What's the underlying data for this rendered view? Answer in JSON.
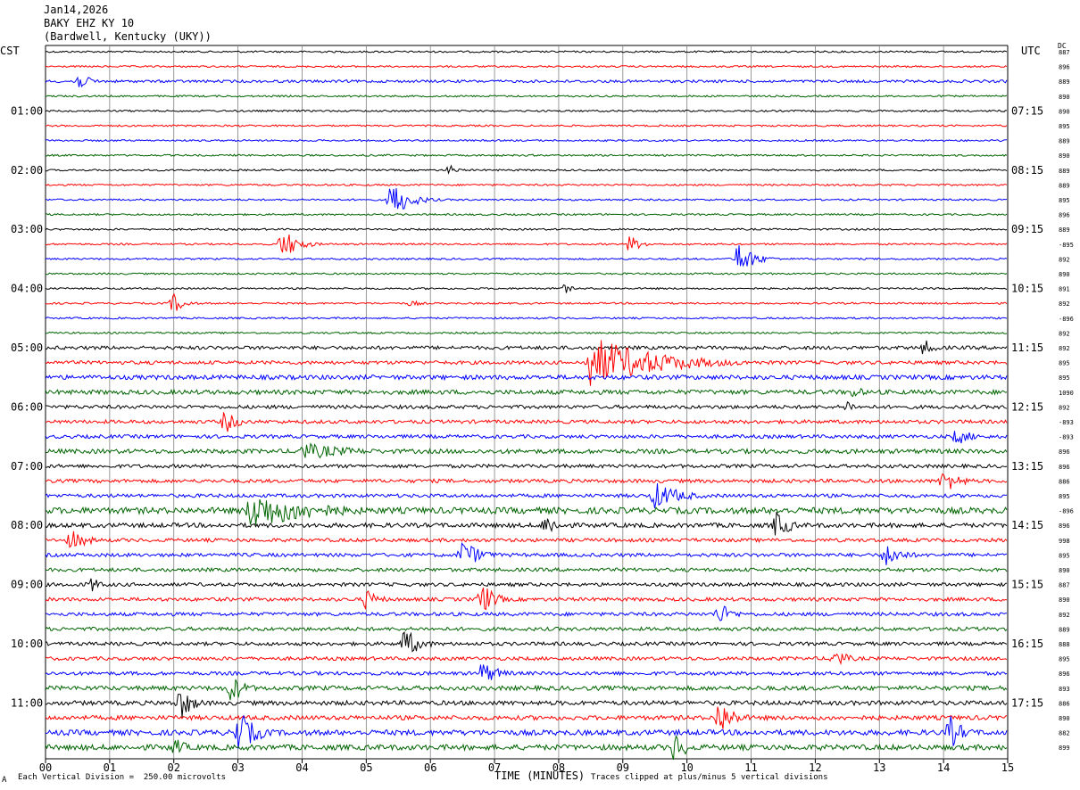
{
  "header": {
    "date": "Jan14,2026",
    "station": "BAKY EHZ KY 10",
    "location": "(Bardwell, Kentucky (UKY))"
  },
  "left_tz": "CST",
  "right_tz": "UTC",
  "dc_label": "DC",
  "footer": {
    "scale": "Each Vertical Division =  250.00 microvolts",
    "xlabel": "TIME (MINUTES)",
    "clip_note": "Traces clipped at plus/minus 5 vertical divisions",
    "corner_mark": "A"
  },
  "colors": {
    "black": "#000000",
    "red": "#ff0000",
    "blue": "#0000ff",
    "green": "#006400",
    "grid": "#808080"
  },
  "chart_data": {
    "type": "line",
    "title": "BAKY EHZ KY 10",
    "xlabel": "TIME (MINUTES)",
    "xlim": [
      0,
      15
    ],
    "x_ticks": [
      "00",
      "01",
      "02",
      "03",
      "04",
      "05",
      "06",
      "07",
      "08",
      "09",
      "10",
      "11",
      "12",
      "13",
      "14",
      "15"
    ],
    "trace_colors": [
      "black",
      "red",
      "blue",
      "green"
    ],
    "row_count": 48,
    "left_hour_labels": [
      {
        "row": 4,
        "label": "01:00"
      },
      {
        "row": 8,
        "label": "02:00"
      },
      {
        "row": 12,
        "label": "03:00"
      },
      {
        "row": 16,
        "label": "04:00"
      },
      {
        "row": 20,
        "label": "05:00"
      },
      {
        "row": 24,
        "label": "06:00"
      },
      {
        "row": 28,
        "label": "07:00"
      },
      {
        "row": 32,
        "label": "08:00"
      },
      {
        "row": 36,
        "label": "09:00"
      },
      {
        "row": 40,
        "label": "10:00"
      },
      {
        "row": 44,
        "label": "11:00"
      }
    ],
    "right_hour_labels": [
      {
        "row": 4,
        "label": "07:15"
      },
      {
        "row": 8,
        "label": "08:15"
      },
      {
        "row": 12,
        "label": "09:15"
      },
      {
        "row": 16,
        "label": "10:15"
      },
      {
        "row": 20,
        "label": "11:15"
      },
      {
        "row": 24,
        "label": "12:15"
      },
      {
        "row": 28,
        "label": "13:15"
      },
      {
        "row": 32,
        "label": "14:15"
      },
      {
        "row": 36,
        "label": "15:15"
      },
      {
        "row": 40,
        "label": "16:15"
      },
      {
        "row": 44,
        "label": "17:15"
      }
    ],
    "dc_values": [
      "887",
      "896",
      "889",
      "890",
      "890",
      "895",
      "889",
      "890",
      "889",
      "889",
      "895",
      "896",
      "889",
      "-895",
      "892",
      "890",
      "891",
      "892",
      "-896",
      "892",
      "892",
      "895",
      "895",
      "1090",
      "892",
      "-893",
      "-893",
      "896",
      "896",
      "886",
      "895",
      "-896",
      "896",
      "998",
      "895",
      "890",
      "887",
      "890",
      "892",
      "889",
      "888",
      "895",
      "896",
      "893",
      "886",
      "890",
      "882",
      "899"
    ],
    "noise_levels": [
      1,
      1,
      1.5,
      1,
      1,
      1,
      1,
      1,
      1,
      1,
      1,
      1,
      1,
      1,
      1,
      1,
      1,
      1,
      1,
      1,
      2,
      2,
      2.5,
      2.5,
      2,
      2,
      2,
      2.5,
      2,
      2,
      2,
      3.5,
      2.5,
      2,
      2,
      2,
      2,
      2,
      2,
      2,
      2,
      2,
      2,
      2.5,
      2.5,
      2.5,
      3,
      3
    ],
    "events": [
      {
        "row": 2,
        "minute": 0.5,
        "amplitude": 10,
        "duration_min": 0.6
      },
      {
        "row": 8,
        "minute": 6.3,
        "amplitude": 6,
        "duration_min": 0.4
      },
      {
        "row": 10,
        "minute": 5.4,
        "amplitude": 22,
        "duration_min": 0.8
      },
      {
        "row": 13,
        "minute": 3.7,
        "amplitude": 18,
        "duration_min": 0.7
      },
      {
        "row": 13,
        "minute": 9.1,
        "amplitude": 10,
        "duration_min": 0.6
      },
      {
        "row": 14,
        "minute": 10.8,
        "amplitude": 20,
        "duration_min": 0.7
      },
      {
        "row": 16,
        "minute": 8.1,
        "amplitude": 6,
        "duration_min": 0.3
      },
      {
        "row": 17,
        "minute": 2.0,
        "amplitude": 12,
        "duration_min": 0.5
      },
      {
        "row": 17,
        "minute": 5.7,
        "amplitude": 4,
        "duration_min": 0.5
      },
      {
        "row": 20,
        "minute": 13.7,
        "amplitude": 10,
        "duration_min": 0.5
      },
      {
        "row": 21,
        "minute": 8.5,
        "amplitude": 30,
        "duration_min": 3.0
      },
      {
        "row": 23,
        "minute": 12.6,
        "amplitude": 8,
        "duration_min": 0.5
      },
      {
        "row": 24,
        "minute": 12.5,
        "amplitude": 8,
        "duration_min": 0.4
      },
      {
        "row": 25,
        "minute": 2.8,
        "amplitude": 14,
        "duration_min": 0.6
      },
      {
        "row": 26,
        "minute": 14.2,
        "amplitude": 10,
        "duration_min": 0.8
      },
      {
        "row": 27,
        "minute": 4.0,
        "amplitude": 10,
        "duration_min": 2.5
      },
      {
        "row": 29,
        "minute": 14.0,
        "amplitude": 14,
        "duration_min": 0.8
      },
      {
        "row": 30,
        "minute": 9.5,
        "amplitude": 16,
        "duration_min": 1.2
      },
      {
        "row": 31,
        "minute": 3.2,
        "amplitude": 22,
        "duration_min": 3.0
      },
      {
        "row": 32,
        "minute": 7.8,
        "amplitude": 14,
        "duration_min": 0.6
      },
      {
        "row": 32,
        "minute": 11.4,
        "amplitude": 18,
        "duration_min": 0.6
      },
      {
        "row": 33,
        "minute": 0.4,
        "amplitude": 12,
        "duration_min": 0.8
      },
      {
        "row": 34,
        "minute": 6.5,
        "amplitude": 18,
        "duration_min": 0.8
      },
      {
        "row": 34,
        "minute": 13.1,
        "amplitude": 14,
        "duration_min": 0.8
      },
      {
        "row": 36,
        "minute": 0.7,
        "amplitude": 10,
        "duration_min": 0.5
      },
      {
        "row": 37,
        "minute": 6.8,
        "amplitude": 20,
        "duration_min": 0.6
      },
      {
        "row": 37,
        "minute": 5.0,
        "amplitude": 12,
        "duration_min": 0.6
      },
      {
        "row": 38,
        "minute": 10.5,
        "amplitude": 14,
        "duration_min": 0.6
      },
      {
        "row": 40,
        "minute": 5.6,
        "amplitude": 18,
        "duration_min": 0.7
      },
      {
        "row": 41,
        "minute": 12.3,
        "amplitude": 12,
        "duration_min": 0.6
      },
      {
        "row": 42,
        "minute": 6.8,
        "amplitude": 14,
        "duration_min": 0.8
      },
      {
        "row": 43,
        "minute": 2.9,
        "amplitude": 18,
        "duration_min": 0.6
      },
      {
        "row": 44,
        "minute": 2.1,
        "amplitude": 20,
        "duration_min": 0.6
      },
      {
        "row": 45,
        "minute": 10.5,
        "amplitude": 22,
        "duration_min": 0.7
      },
      {
        "row": 46,
        "minute": 3.0,
        "amplitude": 26,
        "duration_min": 0.8
      },
      {
        "row": 46,
        "minute": 14.1,
        "amplitude": 20,
        "duration_min": 0.6
      },
      {
        "row": 47,
        "minute": 9.8,
        "amplitude": 18,
        "duration_min": 0.6
      },
      {
        "row": 47,
        "minute": 2.0,
        "amplitude": 12,
        "duration_min": 0.6
      }
    ]
  }
}
